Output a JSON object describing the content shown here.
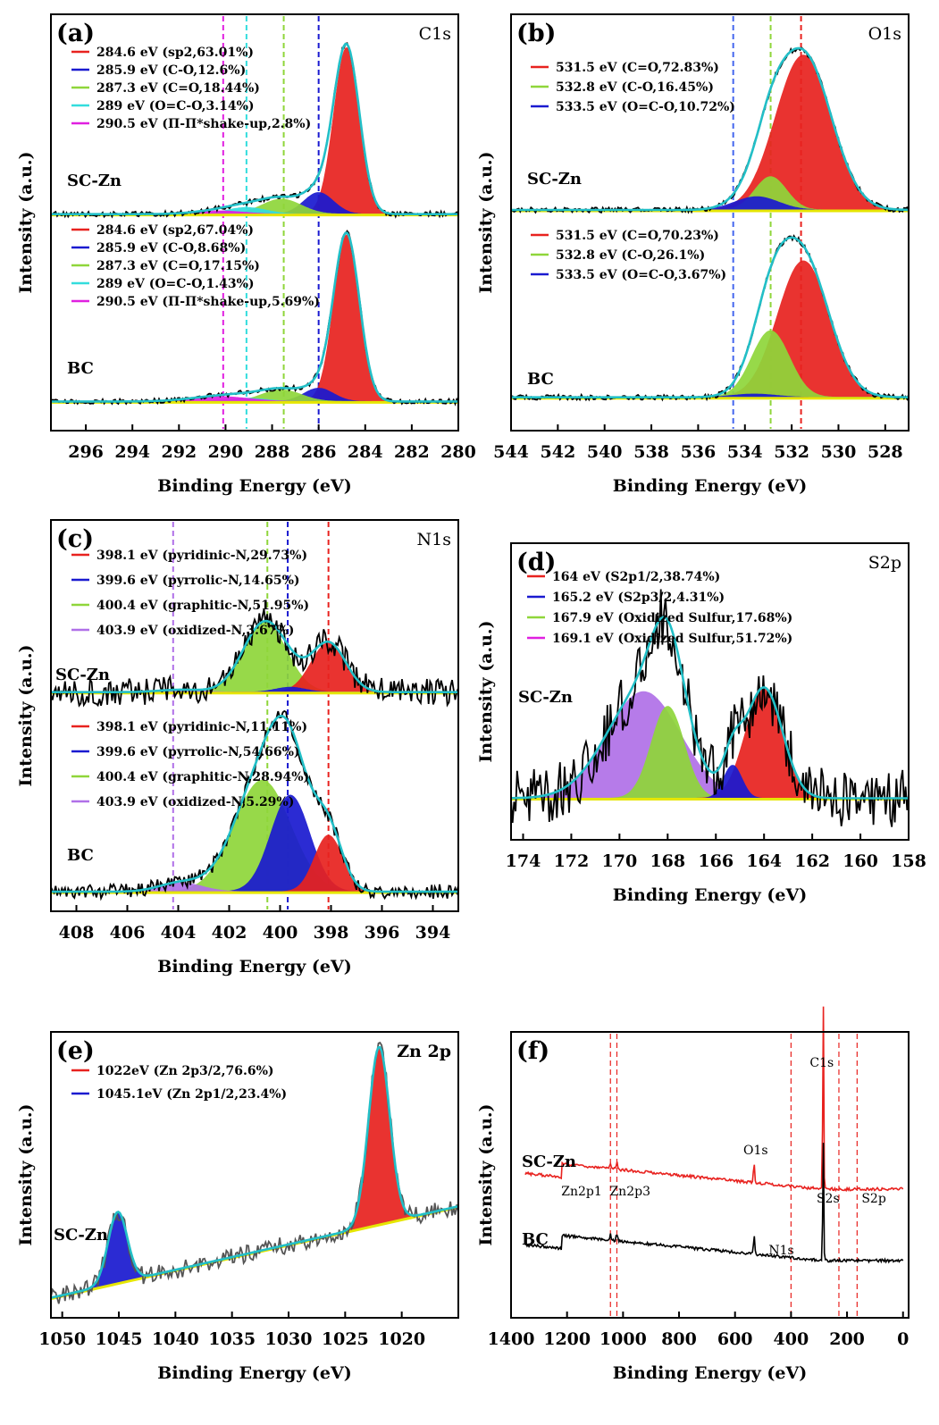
{
  "chart_data": [
    {
      "panel": "(a)",
      "type": "line",
      "region": "C1s",
      "xlabel": "Binding Energy (eV)",
      "ylabel": "Intensity (a.u.)",
      "xlim": [
        297.5,
        280
      ],
      "xticks": [
        296,
        294,
        292,
        290,
        288,
        286,
        284,
        282,
        280
      ],
      "markers": [
        290.1,
        289.1,
        287.5,
        286.0
      ],
      "marker_colors": [
        "#e020e0",
        "#33dddd",
        "#8fd63a",
        "#1a1ad0"
      ],
      "samples": [
        {
          "name": "SC-Zn",
          "baseline": 0.48,
          "scale": 0.4,
          "legend": [
            {
              "text": "284.6 eV (sp2,63.01%)",
              "color": "#e8221f"
            },
            {
              "text": "285.9 eV (C-O,12.6%)",
              "color": "#1a1ad0"
            },
            {
              "text": "287.3 eV (C=O,18.44%)",
              "color": "#8fd63a"
            },
            {
              "text": "289 eV (O=C-O,3.14%)",
              "color": "#33dddd"
            },
            {
              "text": "290.5 eV (Π-Π*shake-up,2.8%)",
              "color": "#e020e0"
            }
          ],
          "components": [
            {
              "center": 284.8,
              "fwhm": 1.3,
              "height": 1.0,
              "color": "#e8221f"
            },
            {
              "center": 286.0,
              "fwhm": 1.5,
              "height": 0.13,
              "color": "#1a1ad0"
            },
            {
              "center": 287.6,
              "fwhm": 2.0,
              "height": 0.09,
              "color": "#8fd63a"
            },
            {
              "center": 289.1,
              "fwhm": 2.0,
              "height": 0.04,
              "color": "#33dddd"
            },
            {
              "center": 290.3,
              "fwhm": 2.5,
              "height": 0.02,
              "color": "#e020e0"
            }
          ]
        },
        {
          "name": "BC",
          "baseline": 0.93,
          "scale": 0.4,
          "legend": [
            {
              "text": "284.6 eV (sp2,67.04%)",
              "color": "#e8221f"
            },
            {
              "text": "285.9 eV (C-O,8.68%)",
              "color": "#1a1ad0"
            },
            {
              "text": "287.3 eV (C=O,17.15%)",
              "color": "#8fd63a"
            },
            {
              "text": "289 eV (O=C-O,1.43%)",
              "color": "#33dddd"
            },
            {
              "text": "290.5 eV (Π-Π*shake-up,5.69%)",
              "color": "#e020e0"
            }
          ],
          "components": [
            {
              "center": 284.8,
              "fwhm": 1.3,
              "height": 1.0,
              "color": "#e8221f"
            },
            {
              "center": 286.0,
              "fwhm": 1.5,
              "height": 0.08,
              "color": "#1a1ad0"
            },
            {
              "center": 287.6,
              "fwhm": 2.0,
              "height": 0.07,
              "color": "#8fd63a"
            },
            {
              "center": 289.1,
              "fwhm": 2.0,
              "height": 0.02,
              "color": "#33dddd"
            },
            {
              "center": 290.3,
              "fwhm": 3.0,
              "height": 0.03,
              "color": "#e020e0"
            }
          ]
        }
      ]
    },
    {
      "panel": "(b)",
      "type": "line",
      "region": "O1s",
      "xlabel": "Binding Energy (eV)",
      "ylabel": "Intensity (a.u.)",
      "xlim": [
        544,
        527
      ],
      "xticks": [
        544,
        542,
        540,
        538,
        536,
        534,
        532,
        530,
        528
      ],
      "markers": [
        534.5,
        532.9,
        531.6
      ],
      "marker_colors": [
        "#4466ee",
        "#8fd63a",
        "#e8221f"
      ],
      "samples": [
        {
          "name": "SC-Zn",
          "baseline": 0.47,
          "scale": 0.4,
          "legend": [
            {
              "text": "531.5 eV (C=O,72.83%)",
              "color": "#e8221f"
            },
            {
              "text": "532.8 eV (C-O,16.45%)",
              "color": "#8fd63a"
            },
            {
              "text": "533.5 eV (O=C-O,10.72%)",
              "color": "#1a1ad0"
            }
          ],
          "components": [
            {
              "center": 531.5,
              "fwhm": 2.8,
              "height": 0.93,
              "color": "#e8221f"
            },
            {
              "center": 532.9,
              "fwhm": 1.6,
              "height": 0.2,
              "color": "#8fd63a"
            },
            {
              "center": 533.5,
              "fwhm": 2.2,
              "height": 0.08,
              "color": "#1a1ad0"
            }
          ]
        },
        {
          "name": "BC",
          "baseline": 0.92,
          "scale": 0.4,
          "legend": [
            {
              "text": "531.5 eV (C=O,70.23%)",
              "color": "#e8221f"
            },
            {
              "text": "532.8 eV (C-O,26.1%)",
              "color": "#8fd63a"
            },
            {
              "text": "533.5 eV (O=C-O,3.67%)",
              "color": "#1a1ad0"
            }
          ],
          "components": [
            {
              "center": 531.5,
              "fwhm": 2.6,
              "height": 0.82,
              "color": "#e8221f"
            },
            {
              "center": 532.9,
              "fwhm": 1.9,
              "height": 0.4,
              "color": "#8fd63a"
            },
            {
              "center": 533.6,
              "fwhm": 2.2,
              "height": 0.02,
              "color": "#1a1ad0"
            }
          ]
        }
      ]
    },
    {
      "panel": "(c)",
      "type": "line",
      "region": "N1s",
      "xlabel": "Binding Energy (eV)",
      "ylabel": "Intensity (a.u.)",
      "xlim": [
        409,
        393
      ],
      "xticks": [
        408,
        406,
        404,
        402,
        400,
        398,
        396,
        394
      ],
      "markers": [
        404.2,
        400.5,
        399.7,
        398.1
      ],
      "marker_colors": [
        "#b070e8",
        "#8fd63a",
        "#1a1ad0",
        "#e8221f"
      ],
      "samples": [
        {
          "name": "SC-Zn",
          "baseline": 0.44,
          "scale": 0.21,
          "noise": 0.17,
          "legend": [
            {
              "text": "398.1 eV (pyridinic-N,29.73%)",
              "color": "#e8221f"
            },
            {
              "text": "399.6 eV (pyrrolic-N,14.65%)",
              "color": "#1a1ad0"
            },
            {
              "text": "400.4 eV (graphitic-N,51.95%)",
              "color": "#8fd63a"
            },
            {
              "text": "403.9 eV (oxidized-N,3.67%)",
              "color": "#b070e8"
            }
          ],
          "components": [
            {
              "center": 400.6,
              "fwhm": 2.0,
              "height": 0.85,
              "color": "#8fd63a"
            },
            {
              "center": 398.1,
              "fwhm": 1.6,
              "height": 0.6,
              "color": "#e8221f"
            },
            {
              "center": 399.6,
              "fwhm": 1.4,
              "height": 0.06,
              "color": "#1a1ad0"
            },
            {
              "center": 403.9,
              "fwhm": 2.0,
              "height": 0.03,
              "color": "#b070e8"
            }
          ]
        },
        {
          "name": "BC",
          "baseline": 0.95,
          "scale": 0.38,
          "noise": 0.05,
          "legend": [
            {
              "text": "398.1 eV (pyridinic-N,11.11%)",
              "color": "#e8221f"
            },
            {
              "text": "399.6 eV (pyrrolic-N,54.66%)",
              "color": "#1a1ad0"
            },
            {
              "text": "400.4 eV (graphitic-N,28.94%)",
              "color": "#8fd63a"
            },
            {
              "text": "403.9 eV (oxidized-N,5.29%)",
              "color": "#b070e8"
            }
          ],
          "components": [
            {
              "center": 400.7,
              "fwhm": 2.6,
              "height": 0.75,
              "color": "#8fd63a"
            },
            {
              "center": 399.6,
              "fwhm": 1.8,
              "height": 0.65,
              "color": "#1a1ad0"
            },
            {
              "center": 398.1,
              "fwhm": 1.3,
              "height": 0.38,
              "color": "#e8221f"
            },
            {
              "center": 403.9,
              "fwhm": 2.0,
              "height": 0.06,
              "color": "#b070e8"
            }
          ]
        }
      ]
    },
    {
      "panel": "(d)",
      "type": "line",
      "region": "S2p",
      "xlabel": "Binding Energy (eV)",
      "ylabel": "Intensity (a.u.)",
      "xlim": [
        174.5,
        158
      ],
      "xticks": [
        174,
        172,
        170,
        168,
        166,
        164,
        162,
        160,
        158
      ],
      "samples": [
        {
          "name": "SC-Zn",
          "baseline": 0.86,
          "scale": 0.62,
          "noise": 0.16,
          "legend": [
            {
              "text": "164 eV (S2p1/2,38.74%)",
              "color": "#e8221f"
            },
            {
              "text": "165.2 eV (S2p3/2,4.31%)",
              "color": "#1a1ad0"
            },
            {
              "text": "167.9 eV (Oxidized Sulfur,17.68%)",
              "color": "#8fd63a"
            },
            {
              "text": "169.1 eV (Oxidized Sulfur,51.72%)",
              "color": "#e020e0"
            }
          ],
          "components": [
            {
              "center": 169.0,
              "fwhm": 3.6,
              "height": 0.58,
              "color": "#b070e8"
            },
            {
              "center": 168.0,
              "fwhm": 1.6,
              "height": 0.5,
              "color": "#8fd63a"
            },
            {
              "center": 164.0,
              "fwhm": 1.8,
              "height": 0.6,
              "color": "#e8221f"
            },
            {
              "center": 165.3,
              "fwhm": 0.9,
              "height": 0.18,
              "color": "#1a1ad0"
            }
          ]
        }
      ]
    },
    {
      "panel": "(e)",
      "type": "line",
      "region": "Zn 2p",
      "xlabel": "Binding Energy (eV)",
      "ylabel": "Intensity (a.u.)",
      "xlim": [
        1051,
        1015
      ],
      "xticks": [
        1050,
        1045,
        1040,
        1035,
        1030,
        1025,
        1020
      ],
      "samples": [
        {
          "name": "SC-Zn",
          "baseline": 0.93,
          "slope": 0.32,
          "scale": 0.62,
          "noise": 0.05,
          "legend": [
            {
              "text": "1022eV (Zn 2p3/2,76.6%)",
              "color": "#e8221f"
            },
            {
              "text": "1045.1eV (Zn 2p1/2,23.4%)",
              "color": "#1a1ad0"
            }
          ],
          "components": [
            {
              "center": 1022.0,
              "fwhm": 2.2,
              "height": 1.0,
              "color": "#e8221f"
            },
            {
              "center": 1045.1,
              "fwhm": 2.0,
              "height": 0.4,
              "color": "#1a1ad0"
            }
          ]
        }
      ]
    },
    {
      "panel": "(f)",
      "type": "line",
      "xlabel": "Binding Energy (eV)",
      "ylabel": "Intensity (a.u.)",
      "xlim": [
        1400,
        -20
      ],
      "xticks": [
        1400,
        1200,
        1000,
        800,
        600,
        400,
        200,
        0
      ],
      "markers": [
        1045,
        1022,
        400,
        229,
        164
      ],
      "survey": [
        {
          "name": "SC-Zn",
          "color": "#e8221f"
        },
        {
          "name": "BC",
          "color": "#000000"
        }
      ],
      "peaks": [
        {
          "text": "C1s",
          "x": 285
        },
        {
          "text": "O1s",
          "x": 532
        },
        {
          "text": "Zn2p1",
          "x": 1045
        },
        {
          "text": "Zn2p3",
          "x": 1022
        },
        {
          "text": "N1s",
          "x": 400
        },
        {
          "text": "S2s",
          "x": 229
        },
        {
          "text": "S2p",
          "x": 164
        }
      ]
    }
  ]
}
